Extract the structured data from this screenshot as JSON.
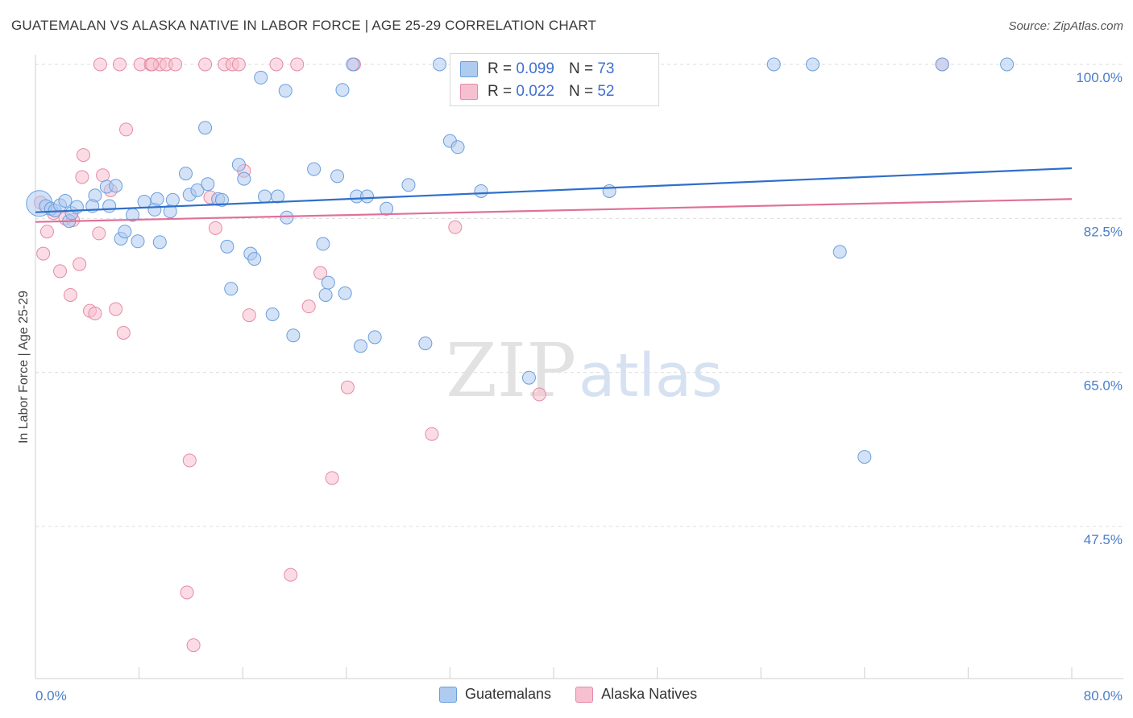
{
  "header": {
    "title": "GUATEMALAN VS ALASKA NATIVE IN LABOR FORCE | AGE 25-29 CORRELATION CHART",
    "source": "Source: ZipAtlas.com"
  },
  "watermark": {
    "zip": "ZIP",
    "atlas": "atlas"
  },
  "legend_top": {
    "rows": [
      {
        "r_label": "R =",
        "r_value": "0.099",
        "n_label": "N =",
        "n_value": "73"
      },
      {
        "r_label": "R =",
        "r_value": "0.022",
        "n_label": "N =",
        "n_value": "52"
      }
    ]
  },
  "legend_bottom": {
    "series1": "Guatemalans",
    "series2": "Alaska Natives"
  },
  "colors": {
    "blue_fill": "#aecbf0",
    "blue_stroke": "#6a9fdc",
    "blue_line": "#2f6fca",
    "pink_fill": "#f7c0d0",
    "pink_stroke": "#e58aa6",
    "pink_line": "#e0709a",
    "tick_text": "#4a7cc9",
    "grid": "#dcdcdc"
  },
  "chart_data": {
    "type": "scatter",
    "title": "GUATEMALAN VS ALASKA NATIVE IN LABOR FORCE | AGE 25-29 CORRELATION CHART",
    "xlabel": "",
    "ylabel": "In Labor Force | Age 25-29",
    "xlim": [
      0,
      80
    ],
    "ylim": [
      31,
      102
    ],
    "x_tick_labels": [
      "0.0%",
      "80.0%"
    ],
    "y_ticks": [
      47.5,
      65.0,
      82.5,
      100.0
    ],
    "y_tick_labels": [
      "47.5%",
      "65.0%",
      "82.5%",
      "100.0%"
    ],
    "grid": true,
    "legend_placement": "top-center",
    "series": [
      {
        "name": "Guatemalans",
        "R": 0.099,
        "N": 73,
        "trend": {
          "x": [
            0,
            80
          ],
          "y": [
            83.2,
            88.2
          ]
        },
        "points": [
          [
            0.3,
            84.2
          ],
          [
            0.8,
            83.9
          ],
          [
            1.2,
            83.6
          ],
          [
            1.5,
            83.4
          ],
          [
            1.9,
            84.0
          ],
          [
            2.3,
            84.5
          ],
          [
            2.6,
            82.2
          ],
          [
            2.8,
            83.1
          ],
          [
            3.2,
            83.8
          ],
          [
            4.6,
            85.1
          ],
          [
            4.4,
            83.9
          ],
          [
            5.7,
            83.9
          ],
          [
            5.5,
            86.1
          ],
          [
            6.2,
            86.2
          ],
          [
            6.6,
            80.2
          ],
          [
            6.9,
            81.0
          ],
          [
            7.5,
            82.9
          ],
          [
            7.9,
            79.9
          ],
          [
            8.4,
            84.4
          ],
          [
            9.2,
            83.5
          ],
          [
            9.6,
            79.8
          ],
          [
            9.4,
            84.7
          ],
          [
            10.4,
            83.3
          ],
          [
            10.6,
            84.6
          ],
          [
            11.6,
            87.6
          ],
          [
            11.9,
            85.2
          ],
          [
            12.5,
            85.7
          ],
          [
            13.1,
            92.8
          ],
          [
            13.3,
            86.4
          ],
          [
            14.1,
            84.7
          ],
          [
            14.4,
            84.6
          ],
          [
            14.8,
            79.3
          ],
          [
            15.1,
            74.5
          ],
          [
            15.7,
            88.6
          ],
          [
            16.1,
            87.0
          ],
          [
            16.6,
            78.5
          ],
          [
            16.9,
            77.9
          ],
          [
            17.7,
            85.0
          ],
          [
            17.4,
            98.5
          ],
          [
            18.3,
            71.6
          ],
          [
            18.7,
            85.0
          ],
          [
            19.4,
            82.6
          ],
          [
            19.9,
            69.2
          ],
          [
            22.2,
            79.6
          ],
          [
            22.4,
            73.8
          ],
          [
            21.5,
            88.1
          ],
          [
            22.6,
            75.2
          ],
          [
            23.3,
            87.3
          ],
          [
            23.9,
            74.0
          ],
          [
            24.8,
            85.0
          ],
          [
            25.1,
            68.0
          ],
          [
            25.6,
            85.0
          ],
          [
            26.2,
            69.0
          ],
          [
            27.1,
            83.6
          ],
          [
            28.8,
            86.3
          ],
          [
            30.1,
            68.3
          ],
          [
            32.0,
            91.3
          ],
          [
            32.6,
            90.6
          ],
          [
            34.4,
            85.6
          ],
          [
            38.1,
            64.4
          ],
          [
            19.3,
            97.0
          ],
          [
            23.7,
            97.1
          ],
          [
            24.5,
            100.0
          ],
          [
            31.2,
            100.0
          ],
          [
            36.8,
            100.0
          ],
          [
            42.3,
            100.0
          ],
          [
            44.3,
            85.6
          ],
          [
            57.0,
            100.0
          ],
          [
            60.0,
            100.0
          ],
          [
            62.1,
            78.7
          ],
          [
            70.0,
            100.0
          ],
          [
            75.0,
            100.0
          ],
          [
            64.0,
            55.4
          ]
        ]
      },
      {
        "name": "Alaska Natives",
        "R": 0.022,
        "N": 52,
        "trend": {
          "x": [
            0,
            80
          ],
          "y": [
            82.1,
            84.7
          ]
        },
        "points": [
          [
            0.4,
            84.3
          ],
          [
            0.6,
            78.5
          ],
          [
            0.9,
            81.0
          ],
          [
            1.4,
            83.1
          ],
          [
            1.9,
            76.5
          ],
          [
            2.3,
            82.5
          ],
          [
            2.7,
            73.8
          ],
          [
            2.9,
            82.3
          ],
          [
            3.4,
            77.3
          ],
          [
            3.6,
            87.2
          ],
          [
            3.7,
            89.7
          ],
          [
            4.2,
            72.0
          ],
          [
            4.6,
            71.7
          ],
          [
            4.9,
            80.8
          ],
          [
            5.2,
            87.4
          ],
          [
            5.8,
            85.7
          ],
          [
            6.2,
            72.2
          ],
          [
            6.8,
            69.5
          ],
          [
            7.0,
            92.6
          ],
          [
            8.1,
            100.0
          ],
          [
            8.9,
            100.0
          ],
          [
            9.6,
            100.0
          ],
          [
            10.1,
            100.0
          ],
          [
            10.8,
            100.0
          ],
          [
            11.7,
            40.0
          ],
          [
            11.9,
            55.0
          ],
          [
            12.2,
            34.0
          ],
          [
            13.1,
            100.0
          ],
          [
            13.5,
            84.9
          ],
          [
            13.9,
            81.4
          ],
          [
            14.6,
            100.0
          ],
          [
            15.2,
            100.0
          ],
          [
            15.7,
            100.0
          ],
          [
            16.1,
            87.9
          ],
          [
            16.5,
            71.5
          ],
          [
            18.6,
            100.0
          ],
          [
            19.7,
            42.0
          ],
          [
            20.2,
            100.0
          ],
          [
            21.1,
            72.5
          ],
          [
            22.0,
            76.3
          ],
          [
            22.9,
            53.0
          ],
          [
            24.1,
            63.3
          ],
          [
            24.6,
            100.0
          ],
          [
            30.6,
            58.0
          ],
          [
            32.4,
            81.5
          ],
          [
            38.9,
            62.5
          ],
          [
            40.0,
            100.0
          ],
          [
            44.7,
            100.0
          ],
          [
            5.0,
            100.0
          ],
          [
            6.5,
            100.0
          ],
          [
            9.0,
            100.0
          ],
          [
            70.0,
            100.0
          ]
        ]
      }
    ]
  }
}
